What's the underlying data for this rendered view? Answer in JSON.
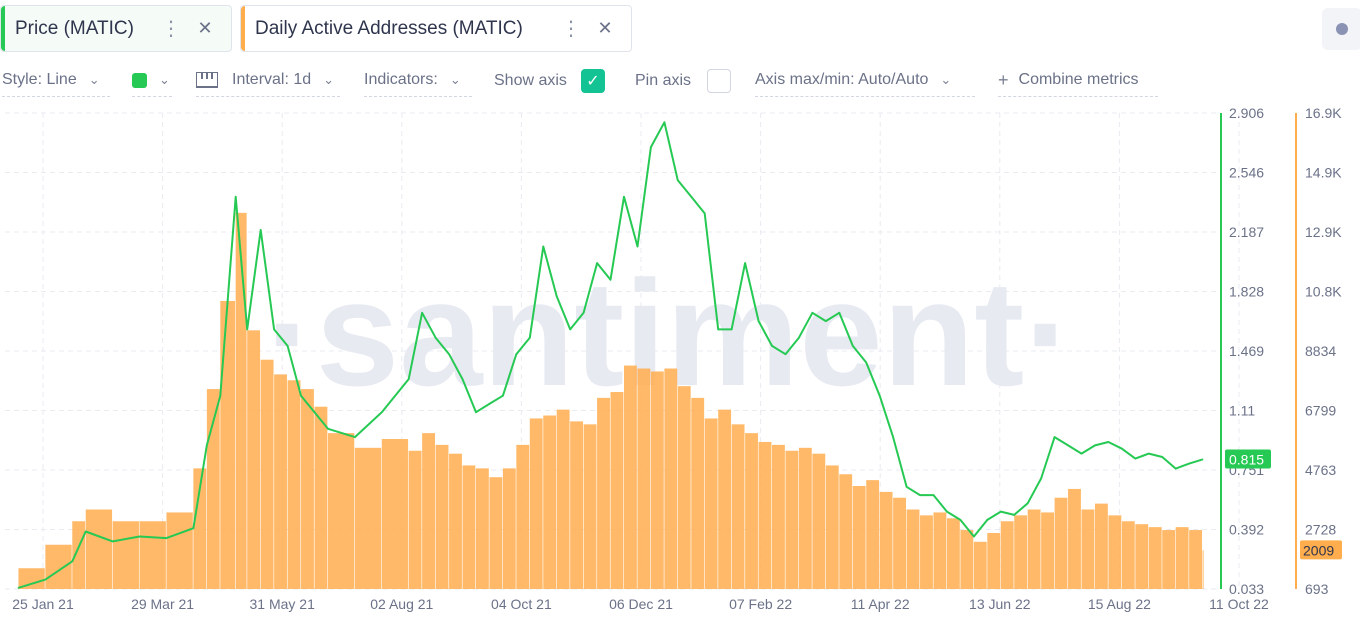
{
  "tabs": [
    {
      "label": "Price (MATIC)",
      "color": "#26c953"
    },
    {
      "label": "Daily Active Addresses (MATIC)",
      "color": "#ffad4d"
    }
  ],
  "toolbar": {
    "style_label": "Style: Line",
    "interval_label": "Interval: 1d",
    "indicators_label": "Indicators:",
    "show_axis_label": "Show axis",
    "show_axis_checked": true,
    "pin_axis_label": "Pin axis",
    "pin_axis_checked": false,
    "axis_label": "Axis max/min: Auto/Auto",
    "combine_label": "Combine metrics",
    "series_color": "#26c953"
  },
  "watermark": "·santiment·",
  "chart_data": {
    "type": "line",
    "x_tick_labels": [
      "25 Jan 21",
      "29 Mar 21",
      "31 May 21",
      "02 Aug 21",
      "04 Oct 21",
      "06 Dec 21",
      "07 Feb 22",
      "11 Apr 22",
      "13 Jun 22",
      "15 Aug 22",
      "11 Oct 22"
    ],
    "price_axis": {
      "ticks": [
        "2.906",
        "2.546",
        "2.187",
        "1.828",
        "1.469",
        "1.11",
        "0.751",
        "0.392",
        "0.033"
      ],
      "min": 0.033,
      "max": 2.906,
      "color": "#26c953"
    },
    "daa_axis": {
      "ticks": [
        "16.9K",
        "14.9K",
        "12.9K",
        "10.8K",
        "8834",
        "6799",
        "4763",
        "2728",
        "693"
      ],
      "min": 693,
      "max": 16900,
      "color": "#ffad4d"
    },
    "current_price_label": "0.815",
    "current_daa_label": "2009",
    "series": [
      {
        "name": "Price (MATIC)",
        "kind": "line",
        "x": [
          "2021-01-25",
          "2021-02-08",
          "2021-02-22",
          "2021-03-01",
          "2021-03-15",
          "2021-03-29",
          "2021-04-12",
          "2021-04-26",
          "2021-05-03",
          "2021-05-10",
          "2021-05-18",
          "2021-05-24",
          "2021-05-31",
          "2021-06-07",
          "2021-06-14",
          "2021-06-21",
          "2021-06-28",
          "2021-07-05",
          "2021-07-19",
          "2021-08-02",
          "2021-08-16",
          "2021-08-23",
          "2021-08-30",
          "2021-09-06",
          "2021-09-13",
          "2021-09-20",
          "2021-09-27",
          "2021-10-04",
          "2021-10-11",
          "2021-10-18",
          "2021-10-25",
          "2021-11-01",
          "2021-11-08",
          "2021-11-15",
          "2021-11-22",
          "2021-11-29",
          "2021-12-06",
          "2021-12-13",
          "2021-12-20",
          "2021-12-27",
          "2022-01-03",
          "2022-01-10",
          "2022-01-17",
          "2022-01-24",
          "2022-01-31",
          "2022-02-07",
          "2022-02-14",
          "2022-02-21",
          "2022-02-28",
          "2022-03-07",
          "2022-03-14",
          "2022-03-21",
          "2022-03-28",
          "2022-04-04",
          "2022-04-11",
          "2022-04-18",
          "2022-04-25",
          "2022-05-02",
          "2022-05-09",
          "2022-05-16",
          "2022-05-23",
          "2022-05-30",
          "2022-06-06",
          "2022-06-13",
          "2022-06-20",
          "2022-06-27",
          "2022-07-04",
          "2022-07-11",
          "2022-07-18",
          "2022-07-25",
          "2022-08-01",
          "2022-08-08",
          "2022-08-15",
          "2022-08-22",
          "2022-08-29",
          "2022-09-05",
          "2022-09-12",
          "2022-09-19",
          "2022-09-26",
          "2022-10-03"
        ],
        "values": [
          0.04,
          0.09,
          0.2,
          0.38,
          0.32,
          0.35,
          0.34,
          0.4,
          0.9,
          1.2,
          2.4,
          1.6,
          2.2,
          1.6,
          1.5,
          1.2,
          1.1,
          1.0,
          0.95,
          1.1,
          1.3,
          1.7,
          1.55,
          1.45,
          1.3,
          1.1,
          1.15,
          1.2,
          1.45,
          1.55,
          2.1,
          1.8,
          1.6,
          1.7,
          2.0,
          1.9,
          2.4,
          2.1,
          2.7,
          2.85,
          2.5,
          2.4,
          2.3,
          1.6,
          1.6,
          2.0,
          1.65,
          1.5,
          1.45,
          1.55,
          1.7,
          1.65,
          1.7,
          1.5,
          1.4,
          1.2,
          0.95,
          0.65,
          0.6,
          0.6,
          0.5,
          0.45,
          0.35,
          0.45,
          0.5,
          0.48,
          0.55,
          0.7,
          0.95,
          0.9,
          0.85,
          0.9,
          0.92,
          0.88,
          0.82,
          0.85,
          0.83,
          0.76,
          0.79,
          0.815
        ]
      },
      {
        "name": "Daily Active Addresses (MATIC)",
        "kind": "bar",
        "x": [
          "2021-01-25",
          "2021-02-08",
          "2021-02-22",
          "2021-03-01",
          "2021-03-15",
          "2021-03-29",
          "2021-04-12",
          "2021-04-26",
          "2021-05-03",
          "2021-05-10",
          "2021-05-18",
          "2021-05-24",
          "2021-05-31",
          "2021-06-07",
          "2021-06-14",
          "2021-06-21",
          "2021-06-28",
          "2021-07-05",
          "2021-07-19",
          "2021-08-02",
          "2021-08-16",
          "2021-08-23",
          "2021-08-30",
          "2021-09-06",
          "2021-09-13",
          "2021-09-20",
          "2021-09-27",
          "2021-10-04",
          "2021-10-11",
          "2021-10-18",
          "2021-10-25",
          "2021-11-01",
          "2021-11-08",
          "2021-11-15",
          "2021-11-22",
          "2021-11-29",
          "2021-12-06",
          "2021-12-13",
          "2021-12-20",
          "2021-12-27",
          "2022-01-03",
          "2022-01-10",
          "2022-01-17",
          "2022-01-24",
          "2022-01-31",
          "2022-02-07",
          "2022-02-14",
          "2022-02-21",
          "2022-02-28",
          "2022-03-07",
          "2022-03-14",
          "2022-03-21",
          "2022-03-28",
          "2022-04-04",
          "2022-04-11",
          "2022-04-18",
          "2022-04-25",
          "2022-05-02",
          "2022-05-09",
          "2022-05-16",
          "2022-05-23",
          "2022-05-30",
          "2022-06-06",
          "2022-06-13",
          "2022-06-20",
          "2022-06-27",
          "2022-07-04",
          "2022-07-11",
          "2022-07-18",
          "2022-07-25",
          "2022-08-01",
          "2022-08-08",
          "2022-08-15",
          "2022-08-22",
          "2022-08-29",
          "2022-09-05",
          "2022-09-12",
          "2022-09-19",
          "2022-09-26",
          "2022-10-03"
        ],
        "values": [
          1400,
          2200,
          3000,
          3400,
          3000,
          3000,
          3300,
          4800,
          7500,
          10500,
          13500,
          9500,
          8500,
          8000,
          7800,
          7500,
          6900,
          6000,
          5500,
          5800,
          5400,
          6000,
          5600,
          5300,
          4900,
          4800,
          4500,
          4800,
          5600,
          6500,
          6600,
          6800,
          6400,
          6300,
          7200,
          7400,
          8300,
          8200,
          8100,
          8200,
          7600,
          7200,
          6500,
          6800,
          6300,
          6000,
          5700,
          5600,
          5400,
          5500,
          5300,
          4900,
          4600,
          4200,
          4400,
          4000,
          3800,
          3400,
          3200,
          3300,
          3100,
          2700,
          2300,
          2600,
          3000,
          3200,
          3400,
          3300,
          3800,
          4100,
          3400,
          3600,
          3200,
          3000,
          2900,
          2800,
          2700,
          2800,
          2700,
          2009
        ]
      }
    ]
  }
}
